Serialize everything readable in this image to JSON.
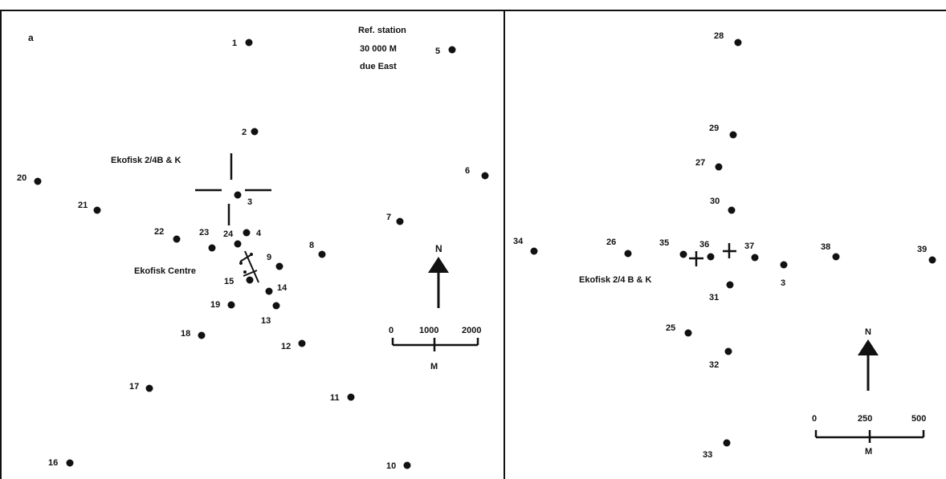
{
  "panel_a": {
    "letter": "a",
    "reference": [
      "Ref. station",
      "30 000 M",
      "due East"
    ],
    "platform_label": "Ekofisk 2/4B & K",
    "centre_label": "Ekofisk Centre",
    "stations": [
      "1",
      "2",
      "3",
      "4",
      "5",
      "6",
      "7",
      "8",
      "9",
      "10",
      "11",
      "12",
      "13",
      "14",
      "15",
      "16",
      "17",
      "18",
      "19",
      "20",
      "21",
      "22",
      "23",
      "24"
    ],
    "north_label": "N",
    "scale_ticks": [
      "0",
      "1000",
      "2000"
    ],
    "scale_unit": "M"
  },
  "panel_b": {
    "platform_label": "Ekofisk 2/4 B & K",
    "stations": [
      "3",
      "25",
      "26",
      "27",
      "28",
      "29",
      "30",
      "31",
      "32",
      "33",
      "34",
      "35",
      "36",
      "37",
      "38",
      "39"
    ],
    "north_label": "N",
    "scale_ticks": [
      "0",
      "250",
      "500"
    ],
    "scale_unit": "M"
  }
}
